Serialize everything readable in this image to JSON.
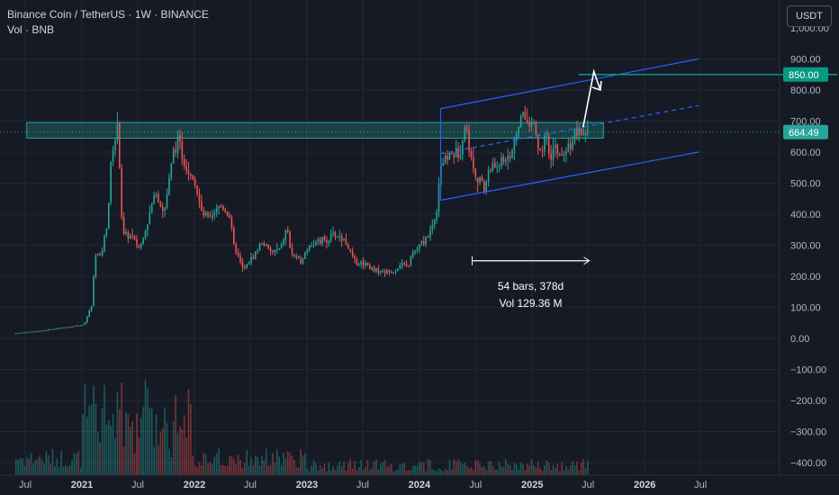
{
  "header": {
    "title": "Binance Coin / TetherUS · 1W · BINANCE",
    "volume_label": "Vol · BNB"
  },
  "currency_button": "USDT",
  "colors": {
    "background": "#161a25",
    "grid": "#232734",
    "up": "#26a69a",
    "down": "#ef5350",
    "channel": "#2962ff",
    "zone": "#26a69a",
    "target": "#089981",
    "measure": "#ffffff"
  },
  "chart_data": {
    "type": "candlestick",
    "symbol": "Binance Coin / TetherUS",
    "interval": "1W",
    "exchange": "BINANCE",
    "price_axis": {
      "range": [
        -430,
        1120
      ],
      "ticks": [
        -400,
        -300,
        -200,
        -100,
        0,
        100,
        200,
        300,
        400,
        500,
        600,
        700,
        800,
        900
      ],
      "tick_labels": [
        "−400.00",
        "−300.00",
        "−200.00",
        "−100.00",
        "0.00",
        "100.00",
        "200.00",
        "300.00",
        "400.00",
        "500.00",
        "600.00",
        "700.00",
        "800.00",
        "900.00"
      ],
      "top_partial_label": "1,000.00"
    },
    "time_axis": {
      "labels": [
        {
          "text": "Jul",
          "date": "2020-07-01",
          "bold": false
        },
        {
          "text": "2021",
          "date": "2021-01-01",
          "bold": true
        },
        {
          "text": "Jul",
          "date": "2021-07-01",
          "bold": false
        },
        {
          "text": "2022",
          "date": "2022-01-01",
          "bold": true
        },
        {
          "text": "Jul",
          "date": "2022-07-01",
          "bold": false
        },
        {
          "text": "2023",
          "date": "2023-01-01",
          "bold": true
        },
        {
          "text": "Jul",
          "date": "2023-07-01",
          "bold": false
        },
        {
          "text": "2024",
          "date": "2024-01-01",
          "bold": true
        },
        {
          "text": "Jul",
          "date": "2024-07-01",
          "bold": false
        },
        {
          "text": "2025",
          "date": "2025-01-01",
          "bold": true
        },
        {
          "text": "Jul",
          "date": "2025-07-01",
          "bold": false
        },
        {
          "text": "2026",
          "date": "2026-01-01",
          "bold": true
        },
        {
          "text": "Jul",
          "date": "2026-07-01",
          "bold": false
        }
      ]
    },
    "price_path": [
      [
        "2020-06-01",
        16
      ],
      [
        "2020-09-01",
        25
      ],
      [
        "2020-12-01",
        38
      ],
      [
        "2021-01-15",
        45
      ],
      [
        "2021-02-10",
        110
      ],
      [
        "2021-02-20",
        280
      ],
      [
        "2021-03-10",
        260
      ],
      [
        "2021-04-01",
        380
      ],
      [
        "2021-04-15",
        600
      ],
      [
        "2021-05-05",
        680
      ],
      [
        "2021-05-20",
        330
      ],
      [
        "2021-06-15",
        330
      ],
      [
        "2021-07-15",
        290
      ],
      [
        "2021-08-15",
        400
      ],
      [
        "2021-09-05",
        480
      ],
      [
        "2021-10-01",
        400
      ],
      [
        "2021-11-01",
        600
      ],
      [
        "2021-11-15",
        640
      ],
      [
        "2021-12-10",
        560
      ],
      [
        "2022-01-05",
        520
      ],
      [
        "2022-02-01",
        400
      ],
      [
        "2022-03-01",
        380
      ],
      [
        "2022-04-01",
        430
      ],
      [
        "2022-05-01",
        400
      ],
      [
        "2022-05-15",
        300
      ],
      [
        "2022-06-15",
        220
      ],
      [
        "2022-07-15",
        260
      ],
      [
        "2022-08-15",
        310
      ],
      [
        "2022-09-15",
        275
      ],
      [
        "2022-10-15",
        290
      ],
      [
        "2022-11-05",
        360
      ],
      [
        "2022-11-15",
        280
      ],
      [
        "2022-12-15",
        245
      ],
      [
        "2023-01-15",
        300
      ],
      [
        "2023-02-15",
        310
      ],
      [
        "2023-03-15",
        320
      ],
      [
        "2023-04-15",
        335
      ],
      [
        "2023-05-15",
        310
      ],
      [
        "2023-06-01",
        270
      ],
      [
        "2023-06-15",
        240
      ],
      [
        "2023-07-15",
        245
      ],
      [
        "2023-08-15",
        220
      ],
      [
        "2023-09-15",
        215
      ],
      [
        "2023-10-15",
        215
      ],
      [
        "2023-11-10",
        240
      ],
      [
        "2023-12-01",
        230
      ],
      [
        "2023-12-15",
        270
      ],
      [
        "2024-01-15",
        305
      ],
      [
        "2024-02-15",
        350
      ],
      [
        "2024-03-05",
        420
      ],
      [
        "2024-03-15",
        560
      ],
      [
        "2024-04-15",
        590
      ],
      [
        "2024-05-15",
        595
      ],
      [
        "2024-06-05",
        690
      ],
      [
        "2024-06-25",
        570
      ],
      [
        "2024-07-10",
        530
      ],
      [
        "2024-08-05",
        480
      ],
      [
        "2024-08-20",
        540
      ],
      [
        "2024-09-15",
        560
      ],
      [
        "2024-10-15",
        580
      ],
      [
        "2024-11-15",
        620
      ],
      [
        "2024-12-05",
        740
      ],
      [
        "2024-12-20",
        690
      ],
      [
        "2025-01-10",
        700
      ],
      [
        "2025-02-03",
        590
      ],
      [
        "2025-02-20",
        650
      ],
      [
        "2025-03-10",
        570
      ],
      [
        "2025-03-25",
        620
      ],
      [
        "2025-04-10",
        570
      ],
      [
        "2025-04-28",
        600
      ],
      [
        "2025-05-20",
        650
      ],
      [
        "2025-06-05",
        665
      ],
      [
        "2025-06-20",
        645
      ],
      [
        "2025-06-30",
        664
      ]
    ],
    "last_price": 664.49,
    "last_price_label": "664.49",
    "target_level": 850,
    "target_label": "850.00",
    "resistance_zone": {
      "from": 645,
      "to": 695,
      "start": "2020-06-01",
      "end": "2025-08-20"
    },
    "channel": {
      "upper": [
        [
          "2024-03-10",
          740
        ],
        [
          "2026-06-25",
          900
        ]
      ],
      "lower": [
        [
          "2024-03-10",
          445
        ],
        [
          "2026-06-25",
          600
        ]
      ],
      "mid": [
        [
          "2024-03-10",
          595
        ],
        [
          "2026-06-25",
          750
        ]
      ]
    },
    "arrow_path": [
      [
        "2025-06-15",
        680
      ],
      [
        "2025-07-20",
        860
      ],
      [
        "2025-08-10",
        800
      ]
    ],
    "measure": {
      "start": "2024-06-20",
      "end": "2025-07-05",
      "price": 250,
      "bars_text": "54 bars, 378d",
      "vol_text": "Vol 129.36 M"
    }
  }
}
